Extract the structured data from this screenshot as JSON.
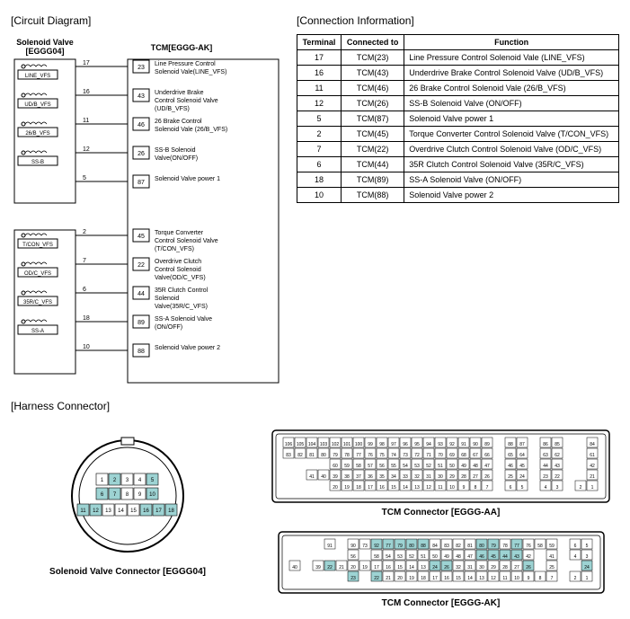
{
  "titles": {
    "circuit": "[Circuit Diagram]",
    "connection": "[Connection Information]",
    "harness": "[Harness Connector]",
    "solenoid_header": "Solenoid Valve\n[EGGG04]",
    "tcm_header": "TCM[EGGG-AK]",
    "solenoid_conn_label": "Solenoid Valve Connector [EGGG04]",
    "tcm_aa_label": "TCM Connector [EGGG-AA]",
    "tcm_ak_label": "TCM Connector [EGGG-AK]"
  },
  "circuit": {
    "left_valves": [
      {
        "name": "LINE_VFS",
        "pin": "17",
        "tcm_pin": "23",
        "fn": "Line Pressure Control Solenoid Vale(LINE_VFS)"
      },
      {
        "name": "UD/B_VFS",
        "pin": "16",
        "tcm_pin": "43",
        "fn": "Underdrive Brake Control Solenoid Valve (UD/B_VFS)"
      },
      {
        "name": "26/B_VFS",
        "pin": "11",
        "tcm_pin": "46",
        "fn": "26 Brake Control Solenoid Vale (26/B_VFS)"
      },
      {
        "name": "SS-B",
        "pin": "12",
        "tcm_pin": "26",
        "fn": "SS-B Solenoid Valve(ON/OFF)"
      },
      {
        "name": "",
        "pin": "5",
        "tcm_pin": "87",
        "fn": "Solenoid Valve power 1"
      },
      {
        "name": "T/CON_VFS",
        "pin": "2",
        "tcm_pin": "45",
        "fn": "Torque Converter Control Solenoid Valve (T/CON_VFS)"
      },
      {
        "name": "OD/C_VFS",
        "pin": "7",
        "tcm_pin": "22",
        "fn": "Overdrive Clutch Control Solenoid Valve(OD/C_VFS)"
      },
      {
        "name": "35R/C_VFS",
        "pin": "6",
        "tcm_pin": "44",
        "fn": "35R Clutch Control Solenoid Valve(35R/C_VFS)"
      },
      {
        "name": "SS-A",
        "pin": "18",
        "tcm_pin": "89",
        "fn": "SS-A Solenoid Valve (ON/OFF)"
      },
      {
        "name": "",
        "pin": "10",
        "tcm_pin": "88",
        "fn": "Solenoid Valve power 2"
      }
    ]
  },
  "info_table": {
    "headers": [
      "Terminal",
      "Connected to",
      "Function"
    ],
    "rows": [
      [
        "17",
        "TCM(23)",
        "Line Pressure Control Solenoid Vale (LINE_VFS)"
      ],
      [
        "16",
        "TCM(43)",
        "Underdrive Brake Control Solenoid Valve (UD/B_VFS)"
      ],
      [
        "11",
        "TCM(46)",
        "26 Brake Control Solenoid Vale (26/B_VFS)"
      ],
      [
        "12",
        "TCM(26)",
        "SS-B Solenoid Valve (ON/OFF)"
      ],
      [
        "5",
        "TCM(87)",
        "Solenoid Valve power 1"
      ],
      [
        "2",
        "TCM(45)",
        "Torque Converter Control Solenoid Valve (T/CON_VFS)"
      ],
      [
        "7",
        "TCM(22)",
        "Overdrive Clutch Control Solenoid Valve (OD/C_VFS)"
      ],
      [
        "6",
        "TCM(44)",
        "35R Clutch Control Solenoid Valve (35R/C_VFS)"
      ],
      [
        "18",
        "TCM(89)",
        "SS-A Solenoid Valve (ON/OFF)"
      ],
      [
        "10",
        "TCM(88)",
        "Solenoid Valve power 2"
      ]
    ]
  },
  "sv_connector": {
    "top_row": [
      "1",
      "2",
      "3",
      "4",
      "5"
    ],
    "mid_row": [
      "6",
      "7",
      "8",
      "9",
      "10"
    ],
    "bot_row": [
      "11",
      "12",
      "13",
      "14",
      "15",
      "16",
      "17",
      "18"
    ],
    "highlight": [
      "2",
      "5",
      "6",
      "7",
      "10",
      "11",
      "12",
      "16",
      "17",
      "18"
    ]
  },
  "tcm_aa": {
    "rows": [
      [
        "106",
        "105",
        "104",
        "103",
        "102",
        "101",
        "100",
        "99",
        "98",
        "97",
        "96",
        "95",
        "94",
        "93",
        "92",
        "91",
        "90",
        "89",
        "",
        "88",
        "87",
        "",
        "86",
        "85",
        "",
        "",
        "84"
      ],
      [
        "83",
        "82",
        "81",
        "80",
        "79",
        "78",
        "77",
        "76",
        "75",
        "74",
        "73",
        "72",
        "71",
        "70",
        "69",
        "68",
        "67",
        "66",
        "",
        "65",
        "64",
        "",
        "63",
        "62",
        "",
        "",
        "61"
      ],
      [
        "60",
        "59",
        "58",
        "57",
        "56",
        "55",
        "54",
        "53",
        "52",
        "51",
        "50",
        "49",
        "48",
        "47",
        "",
        "46",
        "45",
        "",
        "44",
        "43",
        "",
        "",
        "42"
      ],
      [
        "41",
        "40",
        "39",
        "38",
        "37",
        "36",
        "35",
        "34",
        "33",
        "32",
        "31",
        "30",
        "29",
        "28",
        "27",
        "26",
        "",
        "25",
        "24",
        "",
        "23",
        "22",
        "",
        "",
        "21"
      ],
      [
        "20",
        "19",
        "18",
        "17",
        "16",
        "15",
        "14",
        "13",
        "12",
        "11",
        "10",
        "9",
        "8",
        "7",
        "",
        "6",
        "5",
        "",
        "4",
        "3",
        "",
        "2",
        "1"
      ]
    ],
    "highlight": []
  },
  "tcm_ak": {
    "rows": [
      [
        "91",
        "",
        "90",
        "73",
        "92",
        "77",
        "79",
        "80",
        "88",
        "84",
        "83",
        "82",
        "81",
        "80",
        "79",
        "78",
        "77",
        "76",
        "58",
        "59",
        "",
        "6",
        "5"
      ],
      [
        "56",
        "",
        "58",
        "54",
        "53",
        "52",
        "51",
        "50",
        "49",
        "48",
        "47",
        "46",
        "45",
        "44",
        "43",
        "42",
        "",
        "41",
        "",
        "4",
        "3"
      ],
      [
        "40",
        "",
        "39",
        "22",
        "21",
        "20",
        "19",
        "17",
        "16",
        "15",
        "14",
        "13",
        "24",
        "26",
        "32",
        "31",
        "30",
        "29",
        "28",
        "27",
        "26",
        "",
        "25",
        "",
        "",
        "24"
      ],
      [
        "",
        "23",
        "",
        "22",
        "21",
        "20",
        "19",
        "18",
        "17",
        "16",
        "15",
        "14",
        "13",
        "12",
        "11",
        "10",
        "9",
        "8",
        "7",
        "",
        "2",
        "1"
      ]
    ],
    "highlight": [
      "92",
      "77",
      "79",
      "80",
      "88",
      "46",
      "45",
      "44",
      "43",
      "24",
      "26",
      "23",
      "22"
    ]
  },
  "colors": {
    "highlight": "#9dd3d3",
    "stroke": "#000000",
    "bg": "#ffffff"
  }
}
